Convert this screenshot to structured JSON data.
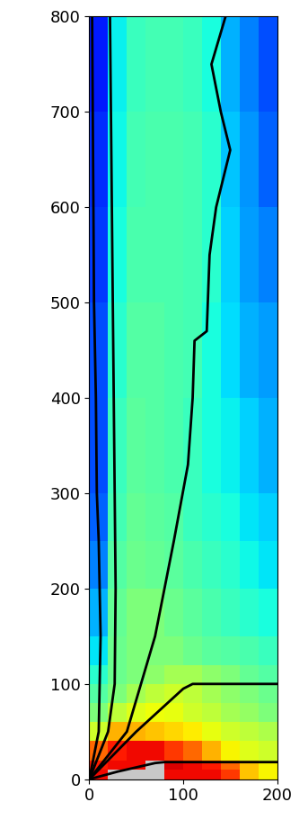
{
  "chart_data": {
    "type": "heatmap",
    "x_edges": [
      0,
      20,
      40,
      60,
      80,
      100,
      120,
      140,
      160,
      180,
      200
    ],
    "y_edges": [
      0,
      10,
      20,
      40,
      60,
      80,
      100,
      120,
      150,
      200,
      250,
      300,
      400,
      500,
      600,
      700,
      800
    ],
    "cells": [
      [
        0.9,
        null,
        null,
        null,
        0.9,
        0.9,
        0.9,
        0.85,
        0.7,
        0.65
      ],
      [
        0.88,
        0.9,
        0.9,
        null,
        0.92,
        0.9,
        0.88,
        0.8,
        0.7,
        0.65
      ],
      [
        0.8,
        0.88,
        0.9,
        0.9,
        0.85,
        0.8,
        0.72,
        0.65,
        0.62,
        0.6
      ],
      [
        0.6,
        0.72,
        0.72,
        0.7,
        0.68,
        0.66,
        0.63,
        0.6,
        0.58,
        0.56
      ],
      [
        0.5,
        0.58,
        0.62,
        0.64,
        0.63,
        0.6,
        0.58,
        0.55,
        0.53,
        0.5
      ],
      [
        0.45,
        0.5,
        0.55,
        0.58,
        0.6,
        0.58,
        0.55,
        0.52,
        0.5,
        0.48
      ],
      [
        0.4,
        0.48,
        0.5,
        0.52,
        0.55,
        0.55,
        0.52,
        0.5,
        0.47,
        0.45
      ],
      [
        0.35,
        0.48,
        0.5,
        0.5,
        0.5,
        0.48,
        0.46,
        0.45,
        0.44,
        0.42
      ],
      [
        0.3,
        0.47,
        0.5,
        0.5,
        0.48,
        0.46,
        0.44,
        0.42,
        0.4,
        0.38
      ],
      [
        0.25,
        0.45,
        0.48,
        0.47,
        0.46,
        0.44,
        0.42,
        0.4,
        0.37,
        0.35
      ],
      [
        0.22,
        0.43,
        0.47,
        0.46,
        0.45,
        0.42,
        0.4,
        0.38,
        0.35,
        0.33
      ],
      [
        0.2,
        0.42,
        0.46,
        0.45,
        0.44,
        0.42,
        0.38,
        0.36,
        0.33,
        0.3
      ],
      [
        0.2,
        0.4,
        0.45,
        0.45,
        0.44,
        0.43,
        0.38,
        0.34,
        0.3,
        0.28
      ],
      [
        0.18,
        0.38,
        0.44,
        0.44,
        0.44,
        0.43,
        0.4,
        0.33,
        0.28,
        0.25
      ],
      [
        0.17,
        0.37,
        0.43,
        0.44,
        0.44,
        0.43,
        0.4,
        0.32,
        0.27,
        0.22
      ],
      [
        0.15,
        0.36,
        0.42,
        0.43,
        0.43,
        0.42,
        0.38,
        0.3,
        0.25,
        0.2
      ]
    ],
    "color_range": [
      0,
      1
    ],
    "lines": [
      {
        "color": "#000000",
        "x": [
          0,
          10,
          12,
          10,
          8,
          7,
          5,
          4,
          3
        ],
        "y": [
          0,
          50,
          150,
          250,
          300,
          400,
          500,
          650,
          800
        ]
      },
      {
        "color": "#000000",
        "x": [
          0,
          20,
          27,
          28,
          26,
          24,
          22
        ],
        "y": [
          0,
          50,
          100,
          200,
          400,
          600,
          800
        ]
      },
      {
        "color": "#000000",
        "x": [
          0,
          40,
          70,
          90,
          105,
          110,
          112,
          125,
          128,
          135,
          150,
          140,
          130,
          145
        ],
        "y": [
          0,
          50,
          150,
          250,
          330,
          400,
          460,
          470,
          550,
          600,
          660,
          700,
          750,
          800
        ]
      },
      {
        "color": "#000000",
        "x": [
          0,
          50,
          100,
          110,
          200
        ],
        "y": [
          0,
          50,
          95,
          100,
          100
        ]
      },
      {
        "color": "#000000",
        "x": [
          0,
          30,
          70,
          80,
          200
        ],
        "y": [
          0,
          8,
          17,
          18,
          18
        ]
      }
    ],
    "xlim": [
      0,
      200
    ],
    "ylim": [
      0,
      800
    ],
    "xticks": [
      0,
      100,
      200
    ],
    "yticks": [
      0,
      100,
      200,
      300,
      400,
      500,
      600,
      700,
      800
    ]
  }
}
